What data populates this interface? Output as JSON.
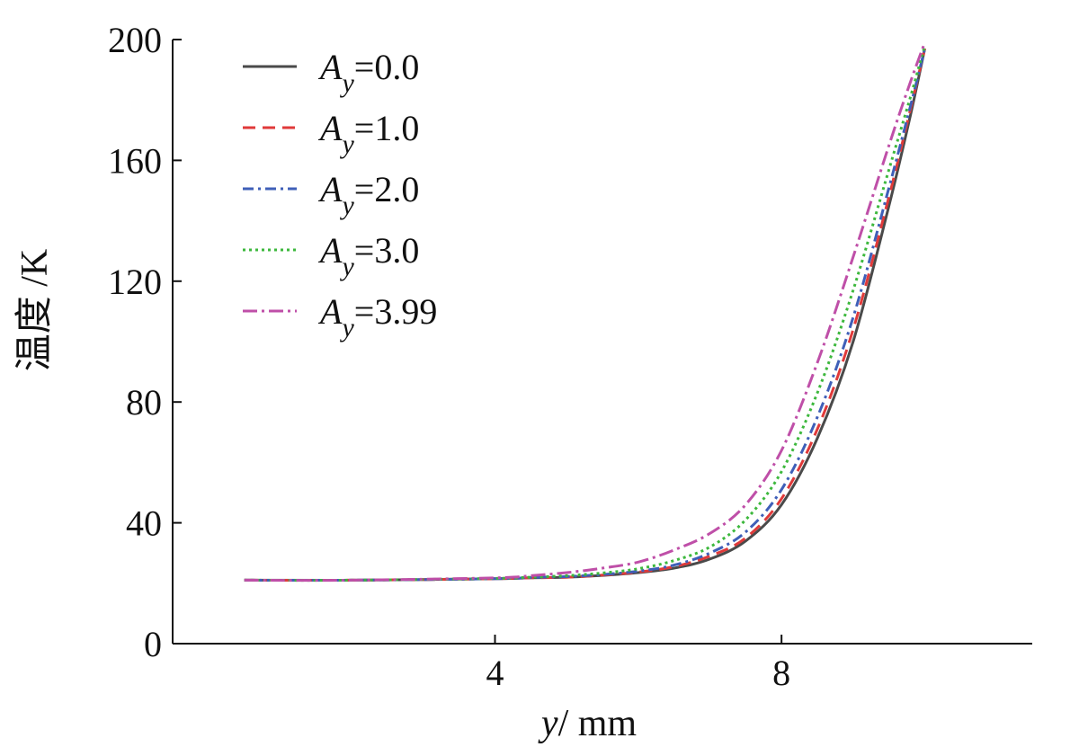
{
  "chart_data": {
    "type": "line",
    "xlabel": {
      "var": "y",
      "unit": "/ mm"
    },
    "ylabel": "温度 /K",
    "xlim": [
      -0.5,
      11.5
    ],
    "ylim": [
      0,
      200
    ],
    "xticks": [
      4,
      8
    ],
    "yticks": [
      0,
      40,
      80,
      120,
      160,
      200
    ],
    "x": [
      0.5,
      2.0,
      4.0,
      4.5,
      5.0,
      5.5,
      6.0,
      6.5,
      7.0,
      7.5,
      8.0,
      8.5,
      9.0,
      9.5,
      9.8,
      10.0
    ],
    "legend_position": "top-left",
    "series": [
      {
        "name": "A_y=0.0",
        "label_main": "A",
        "label_sub": "y",
        "label_value": "=0.0",
        "color": "#4a4a4a",
        "dash": "",
        "values": [
          21,
          21,
          21.5,
          21.8,
          22,
          22.6,
          23.5,
          25,
          28,
          34,
          46,
          68,
          100,
          145,
          175,
          197
        ]
      },
      {
        "name": "A_y=1.0",
        "label_main": "A",
        "label_sub": "y",
        "label_value": "=1.0",
        "color": "#e03a3a",
        "dash": "14,8",
        "values": [
          21,
          21,
          21.5,
          21.8,
          22,
          22.7,
          23.7,
          25.5,
          29,
          35,
          48,
          71,
          104,
          148,
          177,
          197
        ]
      },
      {
        "name": "A_y=2.0",
        "label_main": "A",
        "label_sub": "y",
        "label_value": "=2.0",
        "color": "#3f5fb8",
        "dash": "12,5,3,5",
        "values": [
          21,
          21,
          21.5,
          21.9,
          22.2,
          22.9,
          24,
          26,
          30,
          37,
          51,
          75,
          108,
          151,
          178,
          197
        ]
      },
      {
        "name": "A_y=3.0",
        "label_main": "A",
        "label_sub": "y",
        "label_value": "=3.0",
        "color": "#3db83d",
        "dash": "3,4",
        "values": [
          21,
          21,
          21.6,
          22,
          22.5,
          23.4,
          24.8,
          27.5,
          32,
          41,
          57,
          83,
          117,
          157,
          181,
          198
        ]
      },
      {
        "name": "A_y=3.99",
        "label_main": "A",
        "label_sub": "y",
        "label_value": "=3.99",
        "color": "#bf4fa8",
        "dash": "16,5,3,5",
        "values": [
          21,
          21,
          21.8,
          22.5,
          23.5,
          25,
          27,
          31,
          36.5,
          46,
          64,
          93,
          128,
          165,
          186,
          199
        ]
      }
    ]
  }
}
